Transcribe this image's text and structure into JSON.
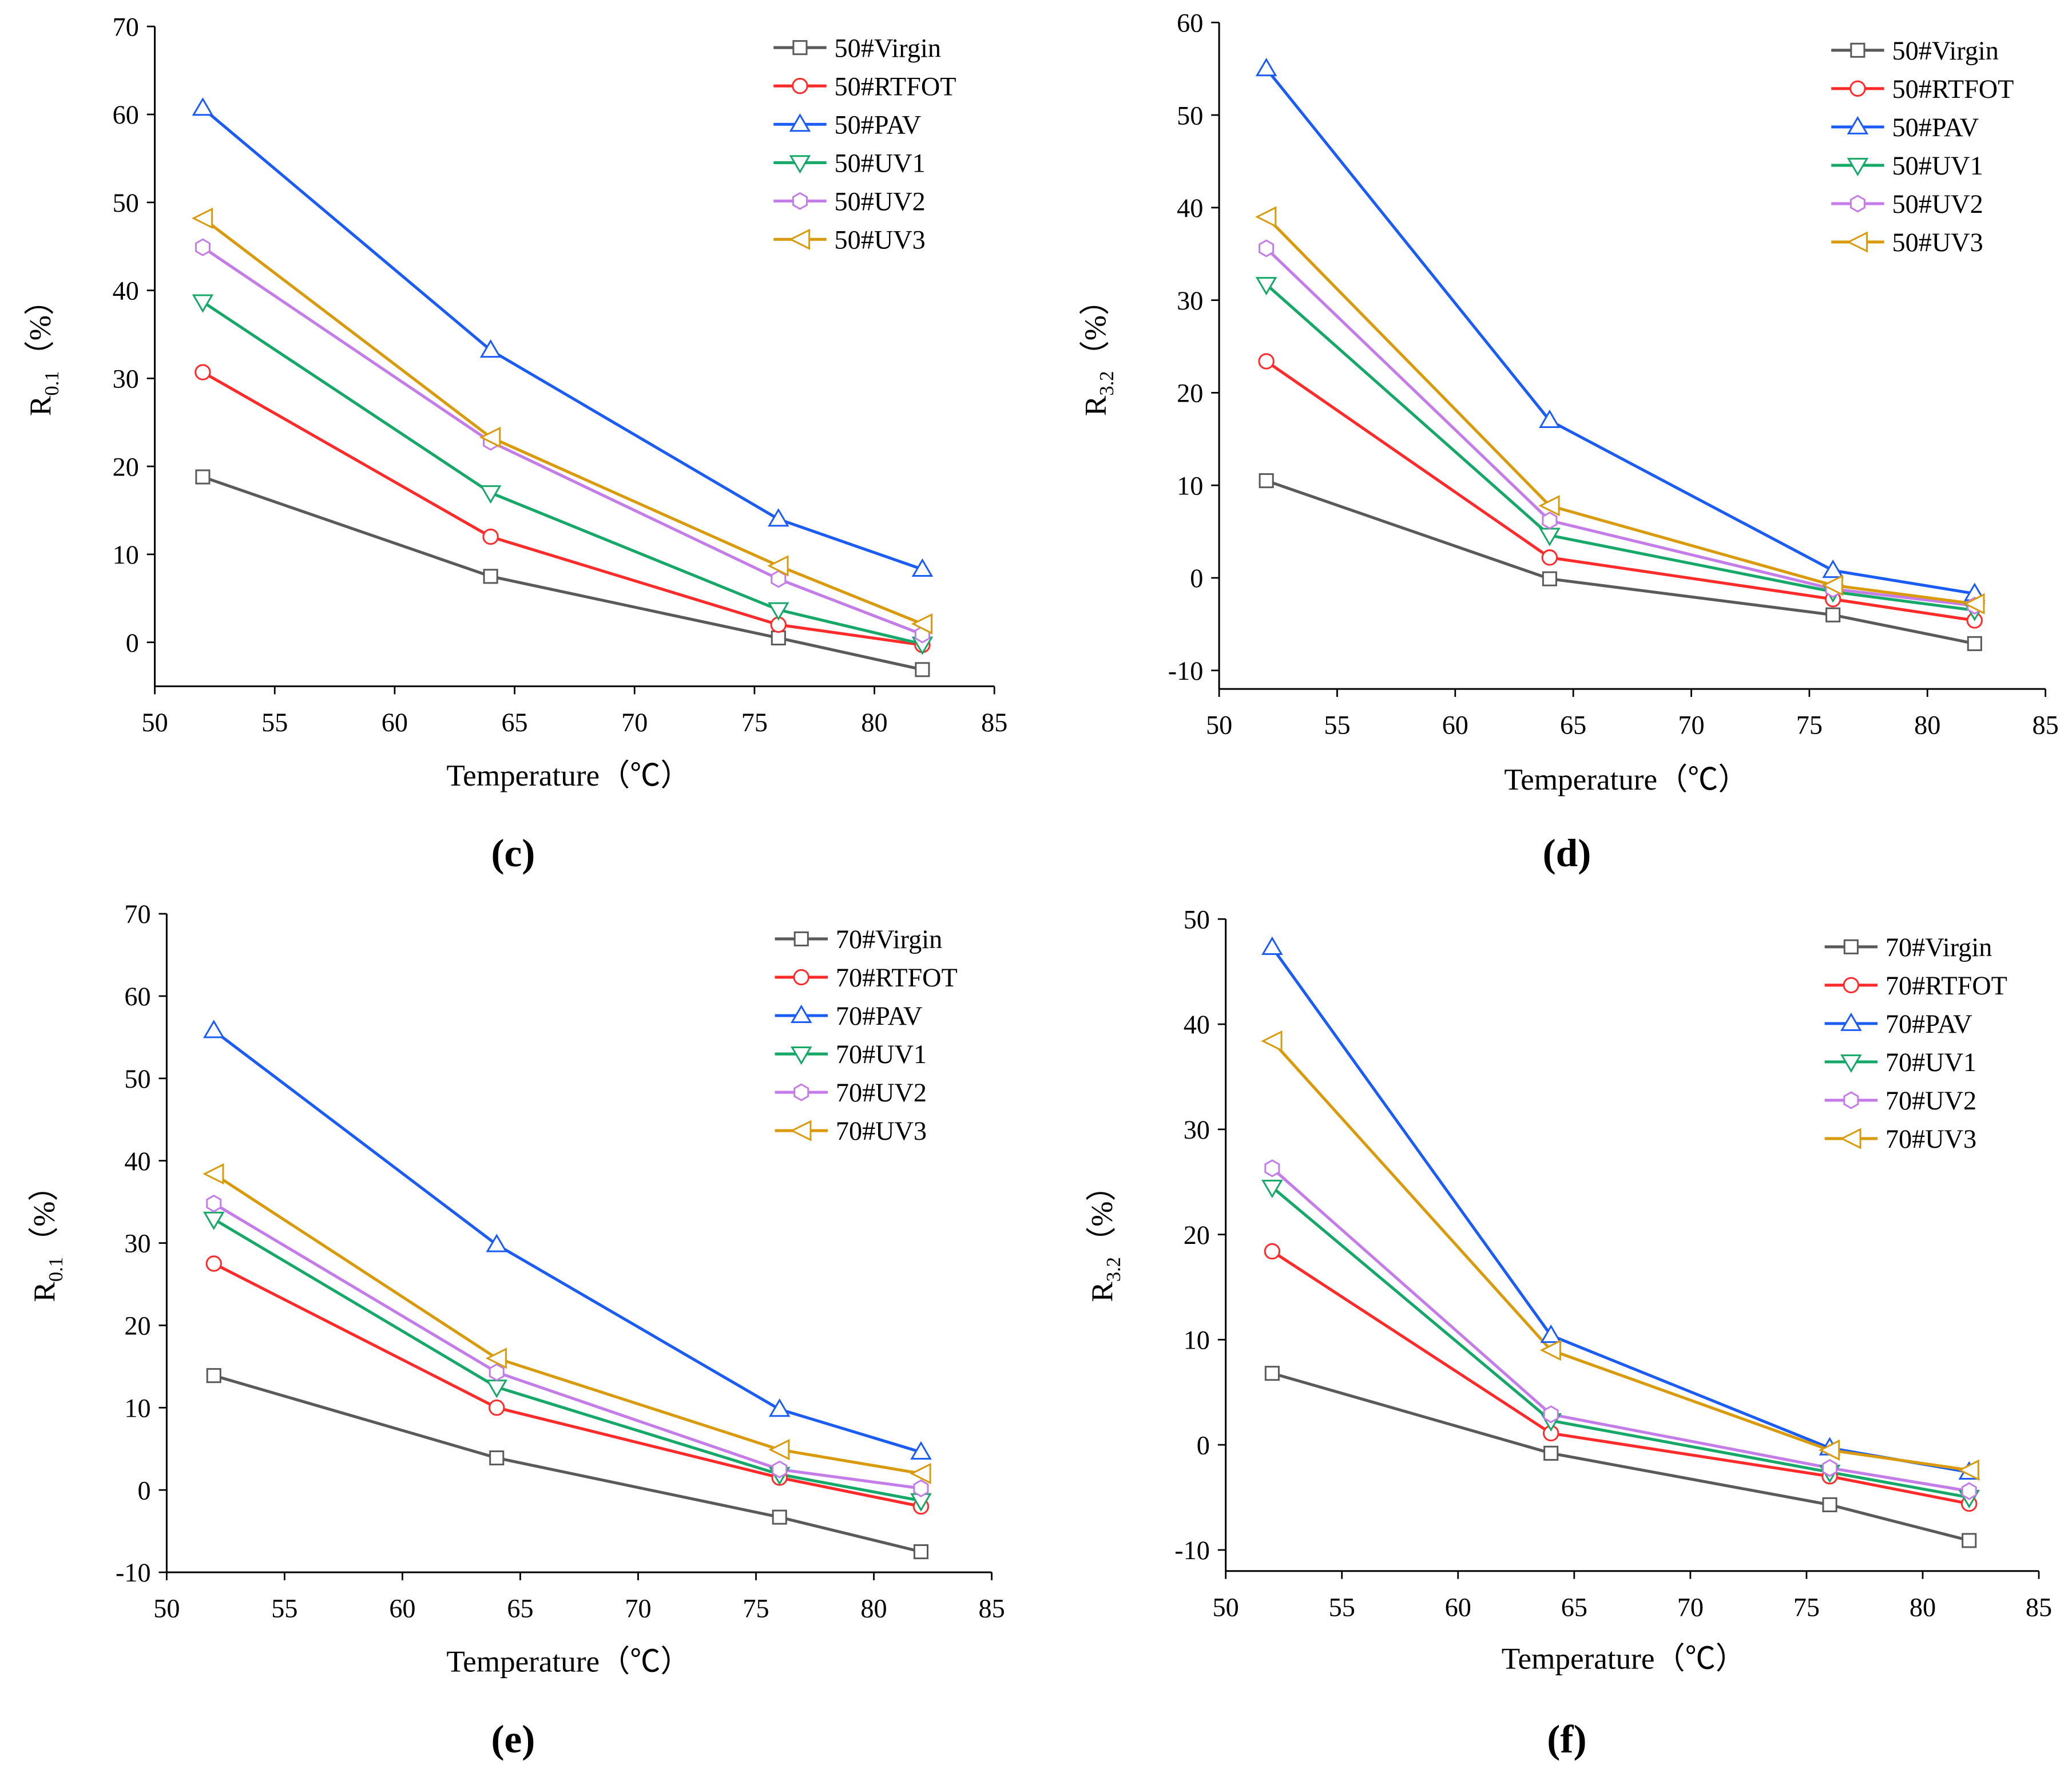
{
  "colors": {
    "Virgin": "#5a5a5a",
    "RTFOT": "#ff2b2b",
    "PAV": "#1b5cf5",
    "UV1": "#16a868",
    "UV2": "#c47de8",
    "UV3": "#d99a0b"
  },
  "chart_data": [
    {
      "type": "line",
      "panel_label": "(c)",
      "xlabel": "Temperature（℃）",
      "ylabel_main": "R",
      "ylabel_sub": "0.1",
      "ylabel_unit": "（%）",
      "xlim": [
        50,
        85
      ],
      "ylim": [
        -5,
        70
      ],
      "xticks": [
        50,
        55,
        60,
        65,
        70,
        75,
        80,
        85
      ],
      "yticks": [
        0,
        10,
        20,
        30,
        40,
        50,
        60,
        70
      ],
      "x": [
        52,
        64,
        76,
        82
      ],
      "legend": "top-right",
      "series": [
        {
          "name": "50#Virgin",
          "key": "Virgin",
          "marker": "square",
          "values": [
            18.8,
            7.5,
            0.5,
            -3.1
          ]
        },
        {
          "name": "50#RTFOT",
          "key": "RTFOT",
          "marker": "circle",
          "values": [
            30.7,
            12.0,
            2.0,
            -0.3
          ]
        },
        {
          "name": "50#PAV",
          "key": "PAV",
          "marker": "triangle-up",
          "values": [
            60.7,
            33.2,
            14.0,
            8.3
          ]
        },
        {
          "name": "50#UV1",
          "key": "UV1",
          "marker": "triangle-down",
          "values": [
            38.7,
            17.0,
            3.7,
            -0.2
          ]
        },
        {
          "name": "50#UV2",
          "key": "UV2",
          "marker": "hexagon",
          "values": [
            44.9,
            22.8,
            7.2,
            0.9
          ]
        },
        {
          "name": "50#UV3",
          "key": "UV3",
          "marker": "triangle-left",
          "values": [
            48.2,
            23.3,
            8.7,
            2.1
          ]
        }
      ]
    },
    {
      "type": "line",
      "panel_label": "(d)",
      "xlabel": "Temperature（℃）",
      "ylabel_main": "R",
      "ylabel_sub": "3.2",
      "ylabel_unit": "（%）",
      "xlim": [
        50,
        85
      ],
      "ylim": [
        -12,
        60
      ],
      "xticks": [
        50,
        55,
        60,
        65,
        70,
        75,
        80,
        85
      ],
      "yticks": [
        -10,
        0,
        10,
        20,
        30,
        40,
        50,
        60
      ],
      "x": [
        52,
        64,
        76,
        82
      ],
      "legend": "top-right",
      "series": [
        {
          "name": "50#Virgin",
          "key": "Virgin",
          "marker": "square",
          "values": [
            10.5,
            -0.1,
            -4.0,
            -7.1
          ]
        },
        {
          "name": "50#RTFOT",
          "key": "RTFOT",
          "marker": "circle",
          "values": [
            23.4,
            2.2,
            -2.3,
            -4.6
          ]
        },
        {
          "name": "50#PAV",
          "key": "PAV",
          "marker": "triangle-up",
          "values": [
            55.0,
            17.0,
            0.8,
            -1.7
          ]
        },
        {
          "name": "50#UV1",
          "key": "UV1",
          "marker": "triangle-down",
          "values": [
            31.7,
            4.6,
            -1.5,
            -3.5
          ]
        },
        {
          "name": "50#UV2",
          "key": "UV2",
          "marker": "hexagon",
          "values": [
            35.6,
            6.2,
            -1.2,
            -3.0
          ]
        },
        {
          "name": "50#UV3",
          "key": "UV3",
          "marker": "triangle-left",
          "values": [
            39.0,
            7.8,
            -0.8,
            -2.8
          ]
        }
      ]
    },
    {
      "type": "line",
      "panel_label": "(e)",
      "xlabel": "Temperature（℃）",
      "ylabel_main": "R",
      "ylabel_sub": "0.1",
      "ylabel_unit": "（%）",
      "xlim": [
        50,
        85
      ],
      "ylim": [
        -10,
        70
      ],
      "xticks": [
        50,
        55,
        60,
        65,
        70,
        75,
        80,
        85
      ],
      "yticks": [
        -10,
        0,
        10,
        20,
        30,
        40,
        50,
        60,
        70
      ],
      "x": [
        52,
        64,
        76,
        82
      ],
      "legend": "top-right",
      "series": [
        {
          "name": "70#Virgin",
          "key": "Virgin",
          "marker": "square",
          "values": [
            13.9,
            3.9,
            -3.3,
            -7.5
          ]
        },
        {
          "name": "70#RTFOT",
          "key": "RTFOT",
          "marker": "circle",
          "values": [
            27.5,
            10.0,
            1.5,
            -2.0
          ]
        },
        {
          "name": "70#PAV",
          "key": "PAV",
          "marker": "triangle-up",
          "values": [
            55.8,
            29.8,
            9.8,
            4.6
          ]
        },
        {
          "name": "70#UV1",
          "key": "UV1",
          "marker": "triangle-down",
          "values": [
            32.9,
            12.5,
            1.9,
            -1.3
          ]
        },
        {
          "name": "70#UV2",
          "key": "UV2",
          "marker": "hexagon",
          "values": [
            34.8,
            14.3,
            2.5,
            0.2
          ]
        },
        {
          "name": "70#UV3",
          "key": "UV3",
          "marker": "triangle-left",
          "values": [
            38.4,
            16.0,
            4.9,
            2.0
          ]
        }
      ]
    },
    {
      "type": "line",
      "panel_label": "(f)",
      "xlabel": "Temperature（℃）",
      "ylabel_main": "R",
      "ylabel_sub": "3.2",
      "ylabel_unit": "（%）",
      "xlim": [
        50,
        85
      ],
      "ylim": [
        -12,
        50
      ],
      "xticks": [
        50,
        55,
        60,
        65,
        70,
        75,
        80,
        85
      ],
      "yticks": [
        -10,
        0,
        10,
        20,
        30,
        40,
        50
      ],
      "x": [
        52,
        64,
        76,
        82
      ],
      "legend": "top-right",
      "series": [
        {
          "name": "70#Virgin",
          "key": "Virgin",
          "marker": "square",
          "values": [
            6.8,
            -0.8,
            -5.7,
            -9.1
          ]
        },
        {
          "name": "70#RTFOT",
          "key": "RTFOT",
          "marker": "circle",
          "values": [
            18.4,
            1.1,
            -3.0,
            -5.6
          ]
        },
        {
          "name": "70#PAV",
          "key": "PAV",
          "marker": "triangle-up",
          "values": [
            47.3,
            10.4,
            -0.3,
            -2.6
          ]
        },
        {
          "name": "70#UV1",
          "key": "UV1",
          "marker": "triangle-down",
          "values": [
            24.5,
            2.3,
            -2.6,
            -5.0
          ]
        },
        {
          "name": "70#UV2",
          "key": "UV2",
          "marker": "hexagon",
          "values": [
            26.3,
            2.9,
            -2.2,
            -4.4
          ]
        },
        {
          "name": "70#UV3",
          "key": "UV3",
          "marker": "triangle-left",
          "values": [
            38.4,
            9.0,
            -0.5,
            -2.4
          ]
        }
      ]
    }
  ]
}
